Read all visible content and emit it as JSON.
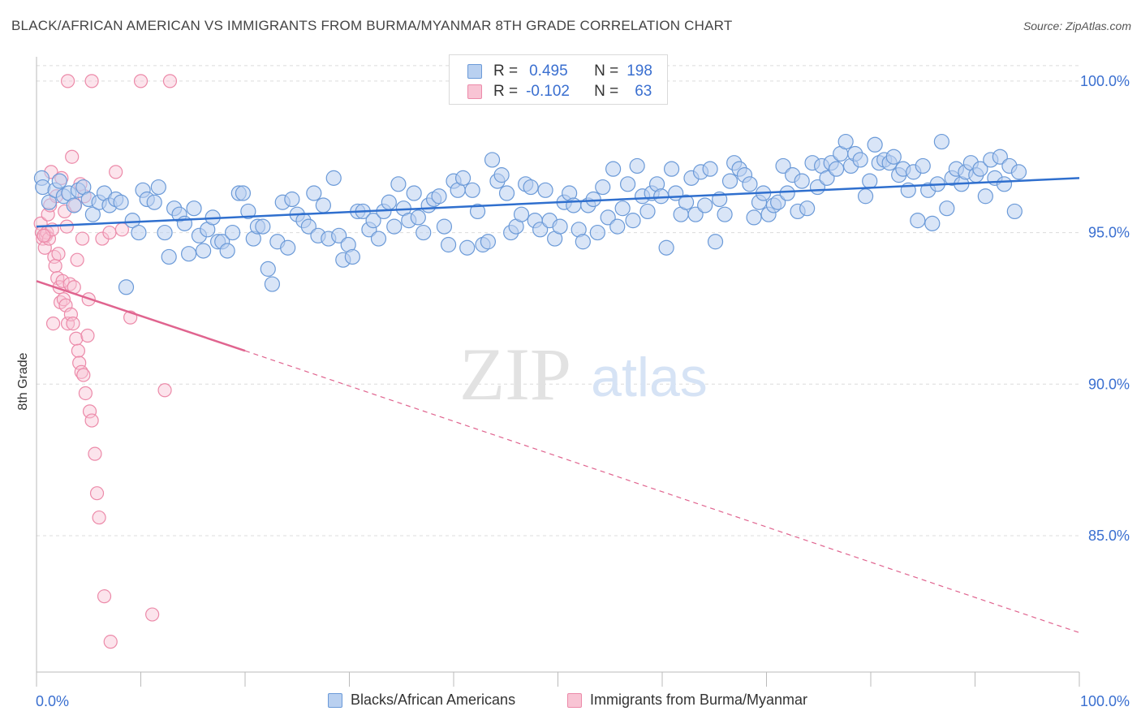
{
  "header": {
    "title": "BLACK/AFRICAN AMERICAN VS IMMIGRANTS FROM BURMA/MYANMAR 8TH GRADE CORRELATION CHART",
    "source": "Source: ZipAtlas.com"
  },
  "watermark": {
    "zip": "ZIP",
    "atlas": "atlas"
  },
  "colors": {
    "blue_fill": "#b9d0f0",
    "blue_stroke": "#6b9ad8",
    "blue_line": "#2f6fce",
    "pink_fill": "#f8c4d4",
    "pink_stroke": "#ec8aa9",
    "pink_line": "#e0648f",
    "tick_label": "#3a6fd0",
    "grid": "#dcdcdc"
  },
  "legend": {
    "rows": [
      {
        "r_label": "R =",
        "r_value": "0.495",
        "n_label": "N =",
        "n_value": "198"
      },
      {
        "r_label": "R =",
        "r_value": "-0.102",
        "n_label": "N =",
        "n_value": "63"
      }
    ]
  },
  "chart_data": {
    "type": "scatter",
    "title": "BLACK/AFRICAN AMERICAN VS IMMIGRANTS FROM BURMA/MYANMAR 8TH GRADE CORRELATION CHART",
    "xlabel": "",
    "ylabel": "8th Grade",
    "xlim": [
      0,
      100
    ],
    "ylim": [
      80.5,
      100.8
    ],
    "x_tick_labels": [
      "0.0%",
      "100.0%"
    ],
    "y_ticks": [
      85,
      90,
      95,
      100
    ],
    "y_tick_labels": [
      "85.0%",
      "90.0%",
      "95.0%",
      "100.0%"
    ],
    "grid": true,
    "legend_position": "top-center",
    "series": [
      {
        "name": "Blacks/African Americans",
        "r": 0.495,
        "n": 198,
        "trend": {
          "x": [
            0,
            100
          ],
          "y": [
            95.2,
            96.8
          ],
          "dashed_from": null
        },
        "points": [
          [
            0.5,
            96.8
          ],
          [
            0.6,
            96.5
          ],
          [
            1.2,
            96.0
          ],
          [
            1.8,
            96.4
          ],
          [
            2.2,
            96.7
          ],
          [
            2.6,
            96.2
          ],
          [
            3.1,
            96.3
          ],
          [
            3.6,
            95.9
          ],
          [
            4.0,
            96.4
          ],
          [
            4.5,
            96.5
          ],
          [
            5.0,
            96.1
          ],
          [
            5.4,
            95.6
          ],
          [
            6.0,
            96.0
          ],
          [
            6.5,
            96.3
          ],
          [
            7.0,
            95.9
          ],
          [
            7.6,
            96.1
          ],
          [
            8.1,
            96.0
          ],
          [
            8.6,
            93.2
          ],
          [
            9.2,
            95.4
          ],
          [
            9.8,
            95.0
          ],
          [
            10.2,
            96.4
          ],
          [
            10.6,
            96.1
          ],
          [
            11.3,
            96.0
          ],
          [
            11.7,
            96.5
          ],
          [
            12.3,
            95.0
          ],
          [
            12.7,
            94.2
          ],
          [
            13.2,
            95.8
          ],
          [
            13.7,
            95.6
          ],
          [
            14.2,
            95.3
          ],
          [
            14.6,
            94.3
          ],
          [
            15.1,
            95.8
          ],
          [
            15.6,
            94.9
          ],
          [
            16.0,
            94.4
          ],
          [
            16.4,
            95.1
          ],
          [
            16.9,
            95.5
          ],
          [
            17.4,
            94.7
          ],
          [
            17.8,
            94.7
          ],
          [
            18.3,
            94.4
          ],
          [
            18.8,
            95.0
          ],
          [
            19.4,
            96.3
          ],
          [
            19.8,
            96.3
          ],
          [
            20.3,
            95.7
          ],
          [
            20.8,
            94.8
          ],
          [
            21.2,
            95.2
          ],
          [
            21.7,
            95.2
          ],
          [
            22.2,
            93.8
          ],
          [
            22.6,
            93.3
          ],
          [
            23.1,
            94.7
          ],
          [
            23.6,
            96.0
          ],
          [
            24.1,
            94.5
          ],
          [
            24.5,
            96.1
          ],
          [
            25.0,
            95.6
          ],
          [
            25.6,
            95.4
          ],
          [
            26.1,
            95.2
          ],
          [
            26.6,
            96.3
          ],
          [
            27.0,
            94.9
          ],
          [
            27.5,
            95.9
          ],
          [
            28.0,
            94.8
          ],
          [
            28.5,
            96.8
          ],
          [
            29.0,
            94.9
          ],
          [
            29.4,
            94.1
          ],
          [
            29.9,
            94.6
          ],
          [
            30.3,
            94.2
          ],
          [
            30.8,
            95.7
          ],
          [
            31.3,
            95.7
          ],
          [
            31.9,
            95.1
          ],
          [
            32.3,
            95.4
          ],
          [
            32.8,
            94.8
          ],
          [
            33.3,
            95.7
          ],
          [
            33.8,
            96.0
          ],
          [
            34.3,
            95.2
          ],
          [
            34.7,
            96.6
          ],
          [
            35.2,
            95.8
          ],
          [
            35.7,
            95.4
          ],
          [
            36.2,
            96.3
          ],
          [
            36.6,
            95.5
          ],
          [
            37.1,
            95.0
          ],
          [
            37.6,
            95.9
          ],
          [
            38.1,
            96.1
          ],
          [
            38.6,
            96.2
          ],
          [
            39.1,
            95.2
          ],
          [
            39.5,
            94.6
          ],
          [
            40.0,
            96.7
          ],
          [
            40.4,
            96.4
          ],
          [
            40.9,
            96.8
          ],
          [
            41.3,
            94.5
          ],
          [
            41.8,
            96.4
          ],
          [
            42.3,
            95.7
          ],
          [
            42.8,
            94.6
          ],
          [
            43.3,
            94.7
          ],
          [
            43.7,
            97.4
          ],
          [
            44.2,
            96.7
          ],
          [
            44.6,
            96.9
          ],
          [
            45.1,
            96.3
          ],
          [
            45.5,
            95.0
          ],
          [
            46.0,
            95.2
          ],
          [
            46.5,
            95.6
          ],
          [
            46.9,
            96.6
          ],
          [
            47.4,
            96.5
          ],
          [
            47.8,
            95.4
          ],
          [
            48.3,
            95.1
          ],
          [
            48.8,
            96.4
          ],
          [
            49.2,
            95.4
          ],
          [
            49.7,
            94.8
          ],
          [
            50.2,
            95.2
          ],
          [
            50.6,
            96.0
          ],
          [
            51.1,
            96.3
          ],
          [
            51.5,
            95.9
          ],
          [
            52.0,
            95.1
          ],
          [
            52.4,
            94.7
          ],
          [
            52.9,
            95.9
          ],
          [
            53.4,
            96.1
          ],
          [
            53.8,
            95.0
          ],
          [
            54.3,
            96.5
          ],
          [
            54.8,
            95.5
          ],
          [
            55.3,
            97.1
          ],
          [
            55.7,
            95.2
          ],
          [
            56.2,
            95.8
          ],
          [
            56.7,
            96.6
          ],
          [
            57.2,
            95.4
          ],
          [
            57.6,
            97.2
          ],
          [
            58.1,
            96.2
          ],
          [
            58.6,
            95.7
          ],
          [
            59.0,
            96.3
          ],
          [
            59.5,
            96.6
          ],
          [
            59.9,
            96.2
          ],
          [
            60.4,
            94.5
          ],
          [
            60.9,
            97.1
          ],
          [
            61.3,
            96.3
          ],
          [
            61.8,
            95.6
          ],
          [
            62.3,
            96.0
          ],
          [
            62.8,
            96.8
          ],
          [
            63.2,
            95.6
          ],
          [
            63.7,
            97.0
          ],
          [
            64.1,
            95.9
          ],
          [
            64.6,
            97.1
          ],
          [
            65.1,
            94.7
          ],
          [
            65.5,
            96.1
          ],
          [
            66.0,
            95.6
          ],
          [
            66.5,
            96.7
          ],
          [
            66.9,
            97.3
          ],
          [
            67.4,
            97.1
          ],
          [
            67.9,
            96.9
          ],
          [
            68.4,
            96.6
          ],
          [
            68.8,
            95.5
          ],
          [
            69.3,
            96.0
          ],
          [
            69.7,
            96.3
          ],
          [
            70.2,
            95.6
          ],
          [
            70.7,
            95.9
          ],
          [
            71.1,
            96.0
          ],
          [
            71.6,
            97.2
          ],
          [
            72.0,
            96.3
          ],
          [
            72.5,
            96.9
          ],
          [
            73.0,
            95.7
          ],
          [
            73.4,
            96.7
          ],
          [
            73.9,
            95.8
          ],
          [
            74.4,
            97.3
          ],
          [
            74.9,
            96.5
          ],
          [
            75.3,
            97.2
          ],
          [
            75.8,
            96.8
          ],
          [
            76.2,
            97.3
          ],
          [
            76.7,
            97.1
          ],
          [
            77.1,
            97.6
          ],
          [
            77.6,
            98.0
          ],
          [
            78.1,
            97.2
          ],
          [
            78.5,
            97.6
          ],
          [
            79.0,
            97.4
          ],
          [
            79.5,
            96.2
          ],
          [
            79.9,
            96.7
          ],
          [
            80.4,
            97.9
          ],
          [
            80.8,
            97.3
          ],
          [
            81.3,
            97.4
          ],
          [
            81.8,
            97.3
          ],
          [
            82.2,
            97.5
          ],
          [
            82.7,
            96.9
          ],
          [
            83.1,
            97.1
          ],
          [
            83.6,
            96.4
          ],
          [
            84.1,
            97.0
          ],
          [
            84.5,
            95.4
          ],
          [
            85.0,
            97.2
          ],
          [
            85.5,
            96.4
          ],
          [
            85.9,
            95.3
          ],
          [
            86.4,
            96.6
          ],
          [
            86.8,
            98.0
          ],
          [
            87.3,
            95.8
          ],
          [
            87.8,
            96.8
          ],
          [
            88.2,
            97.1
          ],
          [
            88.7,
            96.6
          ],
          [
            89.1,
            97.0
          ],
          [
            89.6,
            97.3
          ],
          [
            90.1,
            96.9
          ],
          [
            90.5,
            97.1
          ],
          [
            91.0,
            96.2
          ],
          [
            91.5,
            97.4
          ],
          [
            91.9,
            96.8
          ],
          [
            92.4,
            97.5
          ],
          [
            92.8,
            96.6
          ],
          [
            93.3,
            97.2
          ],
          [
            93.8,
            95.7
          ],
          [
            94.2,
            97.0
          ]
        ]
      },
      {
        "name": "Immigrants from Burma/Myanmar",
        "r": -0.102,
        "n": 63,
        "trend": {
          "x": [
            0,
            20,
            100
          ],
          "y": [
            93.4,
            91.1,
            81.8
          ],
          "dashed_from": 20
        },
        "points": [
          [
            3.0,
            100.0
          ],
          [
            5.3,
            100.0
          ],
          [
            10.0,
            100.0
          ],
          [
            12.8,
            100.0
          ],
          [
            0.4,
            95.3
          ],
          [
            0.5,
            95.0
          ],
          [
            0.6,
            94.8
          ],
          [
            0.8,
            94.5
          ],
          [
            0.9,
            94.9
          ],
          [
            1.0,
            95.0
          ],
          [
            1.1,
            95.6
          ],
          [
            1.2,
            94.8
          ],
          [
            1.3,
            95.9
          ],
          [
            1.5,
            95.1
          ],
          [
            1.7,
            94.2
          ],
          [
            1.8,
            93.9
          ],
          [
            2.0,
            93.5
          ],
          [
            2.2,
            93.2
          ],
          [
            2.3,
            92.7
          ],
          [
            2.5,
            93.4
          ],
          [
            2.6,
            92.8
          ],
          [
            2.8,
            92.6
          ],
          [
            3.0,
            92.0
          ],
          [
            3.2,
            93.3
          ],
          [
            3.3,
            92.3
          ],
          [
            3.5,
            92.0
          ],
          [
            3.6,
            93.2
          ],
          [
            3.8,
            91.5
          ],
          [
            4.0,
            91.1
          ],
          [
            4.1,
            90.7
          ],
          [
            4.3,
            90.4
          ],
          [
            4.5,
            90.3
          ],
          [
            4.7,
            89.7
          ],
          [
            4.9,
            91.6
          ],
          [
            5.1,
            89.1
          ],
          [
            5.3,
            88.8
          ],
          [
            5.6,
            87.7
          ],
          [
            5.8,
            86.4
          ],
          [
            6.0,
            85.6
          ],
          [
            1.4,
            97.0
          ],
          [
            2.4,
            96.8
          ],
          [
            3.4,
            97.5
          ],
          [
            4.2,
            96.6
          ],
          [
            4.6,
            96.2
          ],
          [
            6.3,
            94.8
          ],
          [
            7.0,
            95.0
          ],
          [
            7.6,
            97.0
          ],
          [
            8.2,
            95.1
          ],
          [
            9.0,
            92.2
          ],
          [
            2.9,
            95.2
          ],
          [
            3.9,
            94.1
          ],
          [
            1.6,
            92.0
          ],
          [
            2.1,
            94.3
          ],
          [
            3.7,
            95.9
          ],
          [
            6.5,
            83.0
          ],
          [
            7.1,
            81.5
          ],
          [
            11.1,
            82.4
          ],
          [
            12.3,
            89.8
          ],
          [
            4.4,
            94.8
          ],
          [
            1.9,
            96.2
          ],
          [
            2.7,
            95.7
          ],
          [
            5.0,
            92.8
          ],
          [
            0.7,
            94.9
          ]
        ]
      }
    ]
  }
}
